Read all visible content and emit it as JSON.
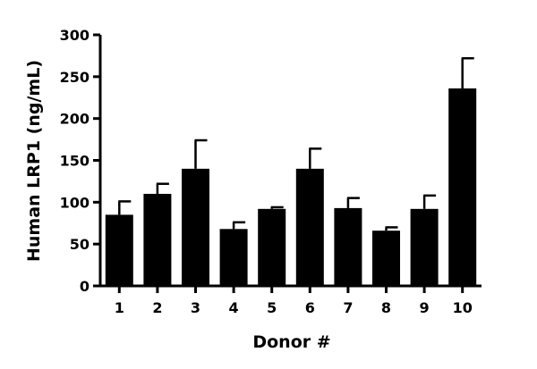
{
  "chart_data": {
    "type": "bar",
    "title": "",
    "xlabel": "Donor #",
    "ylabel": "Human LRP1 (ng/mL)",
    "categories": [
      "1",
      "2",
      "3",
      "4",
      "5",
      "6",
      "7",
      "8",
      "9",
      "10"
    ],
    "values": [
      85,
      110,
      140,
      68,
      92,
      140,
      93,
      66,
      92,
      236
    ],
    "error_upper": [
      101,
      122,
      174,
      76,
      94,
      164,
      105,
      70,
      108,
      272
    ],
    "ylim": [
      0,
      300
    ],
    "yticks": [
      0,
      50,
      100,
      150,
      200,
      250,
      300
    ],
    "grid": false,
    "bar_color": "#000000"
  }
}
